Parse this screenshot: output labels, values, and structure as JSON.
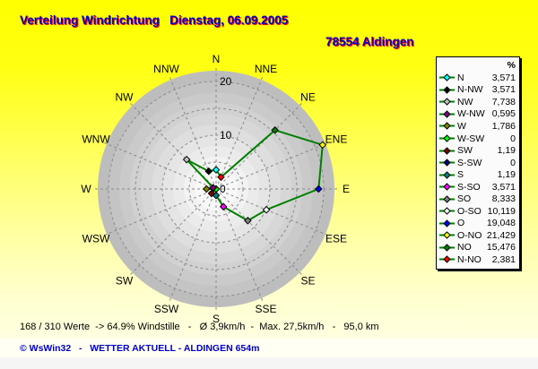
{
  "header": {
    "title": "Verteilung Windrichtung   Dienstag, 06.09.2005",
    "station": "78554 Aldingen"
  },
  "footer": {
    "stats": "168 / 310 Werte  -> 64.9% Windstille   -   Ø 3,9km/h  -  Max. 27,5km/h   -   95,0 km",
    "credit": "© WsWin32   -   WETTER AKTUELL - ALDINGEN 654m"
  },
  "chart_data": {
    "type": "radar",
    "title": "Verteilung Windrichtung",
    "units": "%",
    "legend_header": "%",
    "axis_labels": [
      "N",
      "NNE",
      "NE",
      "ENE",
      "E",
      "ESE",
      "SE",
      "SSE",
      "S",
      "SSW",
      "SW",
      "WSW",
      "W",
      "WNW",
      "NW",
      "NNW"
    ],
    "radial_ticks": [
      "0",
      "10",
      "20"
    ],
    "grid_rings": [
      5,
      10,
      15,
      20
    ],
    "axis_max": 22,
    "grid": true,
    "legend_position": "right",
    "line_color": "#008000",
    "series": [
      {
        "label": "N",
        "angle_deg": 0,
        "value": 3.571,
        "display": "3,571",
        "color": "#00FFFF"
      },
      {
        "label": "N-NW",
        "angle_deg": 337.5,
        "value": 3.571,
        "display": "3,571",
        "color": "#000000"
      },
      {
        "label": "NW",
        "angle_deg": 315,
        "value": 7.738,
        "display": "7,738",
        "color": "#C0C0C0"
      },
      {
        "label": "W-NW",
        "angle_deg": 292.5,
        "value": 0.595,
        "display": "0,595",
        "color": "#800080"
      },
      {
        "label": "W",
        "angle_deg": 270,
        "value": 1.786,
        "display": "1,786",
        "color": "#808000"
      },
      {
        "label": "W-SW",
        "angle_deg": 247.5,
        "value": 0,
        "display": "0",
        "color": "#00FF00"
      },
      {
        "label": "SW",
        "angle_deg": 225,
        "value": 1.19,
        "display": "1,19",
        "color": "#800000"
      },
      {
        "label": "S-SW",
        "angle_deg": 202.5,
        "value": 0,
        "display": "0",
        "color": "#000080"
      },
      {
        "label": "S",
        "angle_deg": 180,
        "value": 1.19,
        "display": "1,19",
        "color": "#008080"
      },
      {
        "label": "S-SO",
        "angle_deg": 157.5,
        "value": 3.571,
        "display": "3,571",
        "color": "#FF00FF"
      },
      {
        "label": "SO",
        "angle_deg": 135,
        "value": 8.333,
        "display": "8,333",
        "color": "#808080"
      },
      {
        "label": "O-SO",
        "angle_deg": 112.5,
        "value": 10.119,
        "display": "10,119",
        "color": "#FFFFFF"
      },
      {
        "label": "O",
        "angle_deg": 90,
        "value": 19.048,
        "display": "19,048",
        "color": "#0000FF"
      },
      {
        "label": "O-NO",
        "angle_deg": 67.5,
        "value": 21.429,
        "display": "21,429",
        "color": "#FFFF00"
      },
      {
        "label": "NO",
        "angle_deg": 45,
        "value": 15.476,
        "display": "15,476",
        "color": "#008000"
      },
      {
        "label": "N-NO",
        "angle_deg": 22.5,
        "value": 2.381,
        "display": "2,381",
        "color": "#FF0000"
      }
    ]
  }
}
